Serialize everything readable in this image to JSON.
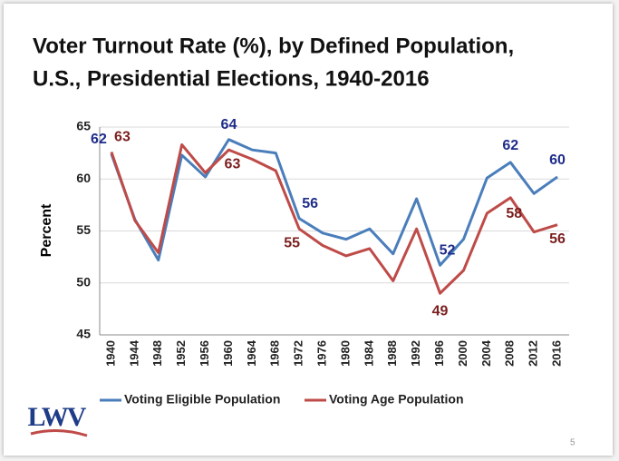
{
  "chart_data": {
    "type": "line",
    "title_lines": [
      "Voter Turnout Rate (%), by Defined Population,",
      "U.S., Presidential Elections, 1940-2016"
    ],
    "y_label": "Percent",
    "categories": [
      "1940",
      "1944",
      "1948",
      "1952",
      "1956",
      "1960",
      "1964",
      "1968",
      "1972",
      "1976",
      "1980",
      "1984",
      "1988",
      "1992",
      "1996",
      "2000",
      "2004",
      "2008",
      "2012",
      "2016"
    ],
    "series": [
      {
        "name": "Voting Eligible Population",
        "color": "#4a7ebb",
        "label_color": "#1f2d8a",
        "values": [
          62.4,
          56.1,
          52.2,
          62.3,
          60.2,
          63.8,
          62.8,
          62.5,
          56.2,
          54.8,
          54.2,
          55.2,
          52.8,
          58.1,
          51.7,
          54.2,
          60.1,
          61.6,
          58.6,
          60.2
        ],
        "value_labels": [
          "62",
          null,
          null,
          null,
          null,
          "64",
          null,
          null,
          "56",
          null,
          null,
          null,
          null,
          null,
          "52",
          null,
          null,
          "62",
          null,
          "60"
        ]
      },
      {
        "name": "Voting Age Population",
        "color": "#be4b48",
        "label_color": "#7b1e1e",
        "values": [
          62.6,
          56.0,
          52.9,
          63.3,
          60.6,
          62.8,
          61.9,
          60.8,
          55.2,
          53.6,
          52.6,
          53.3,
          50.2,
          55.2,
          49.0,
          51.2,
          56.7,
          58.2,
          54.9,
          55.6
        ],
        "value_labels": [
          "63",
          null,
          null,
          null,
          null,
          "63",
          null,
          null,
          "55",
          null,
          null,
          null,
          null,
          null,
          "49",
          null,
          null,
          "58",
          null,
          "56"
        ]
      }
    ],
    "ylim": [
      45,
      65
    ],
    "yticks": [
      45,
      50,
      55,
      60,
      65
    ],
    "grid": true,
    "legend": "bottom"
  },
  "logo": "LWV",
  "page_number": "5"
}
